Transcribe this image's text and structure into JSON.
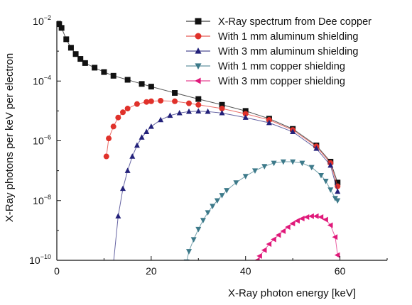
{
  "chart_data": {
    "type": "scatter",
    "title": "",
    "xlabel": "X-Ray photon energy [keV]",
    "ylabel": "X-Ray photons per keV per electron",
    "xlim": [
      0,
      70
    ],
    "ylim": [
      1e-10,
      0.01
    ],
    "y_scale": "log",
    "grid": false,
    "legend_position": "top-right",
    "x_ticks": [
      {
        "value": 0,
        "label": "0"
      },
      {
        "value": 20,
        "label": "20"
      },
      {
        "value": 40,
        "label": "40"
      },
      {
        "value": 60,
        "label": "60"
      }
    ],
    "y_ticks": [
      {
        "value": 1e-10,
        "base": "10",
        "exp": "−10"
      },
      {
        "value": 1e-08,
        "base": "10",
        "exp": "−8"
      },
      {
        "value": 1e-06,
        "base": "10",
        "exp": "−6"
      },
      {
        "value": 0.0001,
        "base": "10",
        "exp": "−4"
      },
      {
        "value": 0.01,
        "base": "10",
        "exp": "−2"
      }
    ],
    "series": [
      {
        "name": "X-Ray spectrum from Dee copper",
        "color": "#111111",
        "marker": "square",
        "x": [
          0.5,
          1,
          2,
          3,
          4,
          5,
          6,
          8,
          10,
          12,
          15,
          18,
          20,
          25,
          30,
          35,
          40,
          45,
          50,
          55,
          58,
          59.5
        ],
        "y": [
          0.008,
          0.006,
          0.0025,
          0.0013,
          0.0008,
          0.00055,
          0.0004,
          0.00028,
          0.0002,
          0.00015,
          0.00011,
          8e-05,
          6.5e-05,
          4e-05,
          2.5e-05,
          1.6e-05,
          1e-05,
          5.5e-06,
          2.5e-06,
          7e-07,
          2e-07,
          4e-08
        ]
      },
      {
        "name": "With 1 mm aluminum shielding",
        "color": "#e0312a",
        "marker": "circle",
        "x": [
          10.5,
          11,
          12,
          13,
          14,
          15,
          17,
          19,
          20,
          22,
          25,
          28,
          30,
          35,
          40,
          45,
          50,
          55,
          58,
          59.5
        ],
        "y": [
          3e-07,
          1.2e-06,
          3e-06,
          6e-06,
          9e-06,
          1.2e-05,
          1.7e-05,
          2e-05,
          2.1e-05,
          2.2e-05,
          2.1e-05,
          1.8e-05,
          1.6e-05,
          1.2e-05,
          8e-06,
          5e-06,
          2.3e-06,
          6.5e-07,
          1.8e-07,
          3e-08
        ]
      },
      {
        "name": "With 3 mm aluminum shielding",
        "color": "#23217a",
        "marker": "triangle-up",
        "x": [
          12,
          13,
          14,
          15,
          16,
          17,
          18,
          19,
          20,
          22,
          24,
          26,
          28,
          30,
          32,
          35,
          40,
          45,
          50,
          55,
          58,
          59.5
        ],
        "y": [
          8e-11,
          3e-09,
          2.5e-08,
          1e-07,
          3e-07,
          7e-07,
          1.3e-06,
          2e-06,
          3e-06,
          5e-06,
          7e-06,
          8.5e-06,
          9.5e-06,
          9.8e-06,
          9.5e-06,
          8.5e-06,
          6e-06,
          4e-06,
          2e-06,
          5.5e-07,
          1.5e-07,
          2e-08
        ]
      },
      {
        "name": "With 1 mm copper shielding",
        "color": "#3d7a8a",
        "marker": "triangle-down",
        "x": [
          27.5,
          28,
          29,
          30,
          31,
          32,
          33,
          34,
          35,
          36,
          38,
          40,
          42,
          44,
          46,
          48,
          50,
          52,
          54,
          56,
          57,
          58,
          59,
          59.5
        ],
        "y": [
          9e-11,
          2e-10,
          5e-10,
          1.1e-09,
          2.2e-09,
          4e-09,
          6.5e-09,
          1e-08,
          1.5e-08,
          2.2e-08,
          4e-08,
          6.5e-08,
          1e-07,
          1.4e-07,
          1.8e-07,
          2e-07,
          2e-07,
          1.8e-07,
          1.3e-07,
          7e-08,
          4.5e-08,
          2.3e-08,
          1.2e-08,
          1e-08
        ]
      },
      {
        "name": "With 3 mm copper shielding",
        "color": "#e0197a",
        "marker": "triangle-left",
        "x": [
          42.5,
          43,
          44,
          45,
          46,
          47,
          48,
          49,
          50,
          51,
          52,
          53,
          54,
          55,
          56,
          57,
          58,
          59,
          59.5
        ],
        "y": [
          1e-10,
          1.4e-10,
          2.2e-10,
          3.5e-10,
          5e-10,
          7e-10,
          9.5e-10,
          1.3e-09,
          1.7e-09,
          2.1e-09,
          2.5e-09,
          2.8e-09,
          3e-09,
          3e-09,
          2.8e-09,
          2.3e-09,
          1.5e-09,
          6e-10,
          1.5e-10
        ]
      }
    ]
  }
}
